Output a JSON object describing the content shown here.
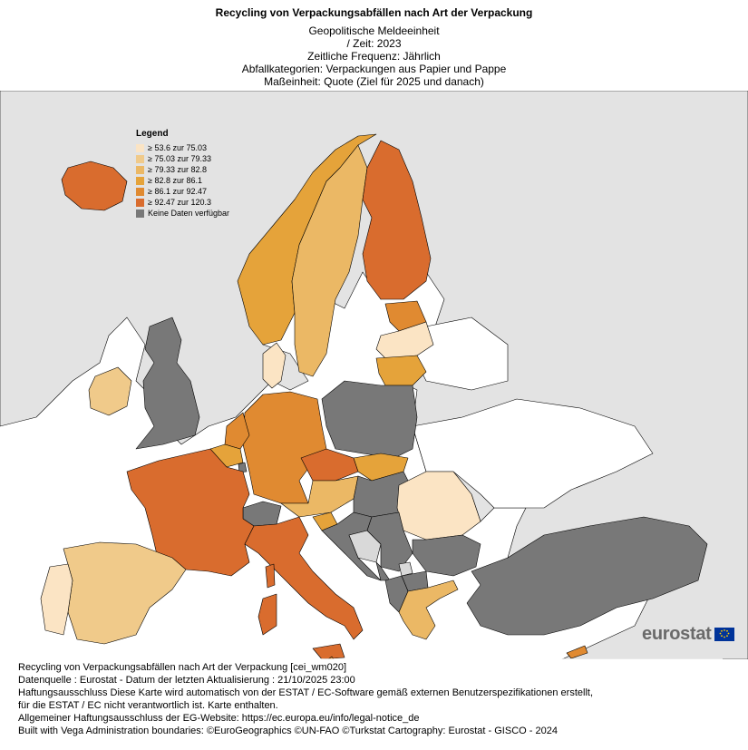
{
  "header": {
    "title": "Recycling von Verpackungsabfällen nach Art der Verpackung",
    "meta": [
      "Geopolitische Meldeeinheit",
      "/ Zeit:  2023",
      "Zeitliche Frequenz:  Jährlich",
      "Abfallkategorien:  Verpackungen aus Papier und Pappe",
      "Maßeinheit:  Quote (Ziel für 2025 und danach)"
    ]
  },
  "legend": {
    "title": "Legend",
    "items": [
      {
        "label": "≥ 53.6 zur 75.03",
        "color": "#fbe4c4"
      },
      {
        "label": "≥ 75.03 zur 79.33",
        "color": "#f0ca8a"
      },
      {
        "label": "≥ 79.33 zur 82.8",
        "color": "#ebb865"
      },
      {
        "label": "≥ 82.8 zur 86.1",
        "color": "#e5a33a"
      },
      {
        "label": "≥ 86.1 zur 92.47",
        "color": "#e08a31"
      },
      {
        "label": "≥ 92.47 zur 120.3",
        "color": "#d96c2e"
      },
      {
        "label": "Keine Daten verfügbar",
        "color": "#787878"
      }
    ]
  },
  "map_colors": {
    "sea": "#ffffff",
    "non_eu": "#e3e3e3",
    "no_data": "#787878",
    "other_white": "#ffffff",
    "border": "#000000"
  },
  "logo": {
    "text": "eurostat"
  },
  "footer": {
    "lines": [
      "Recycling von Verpackungsabfällen nach Art der Verpackung [cei_wm020]",
      "Datenquelle : Eurostat - Datum der letzten Aktualisierung : 21/10/2025 23:00",
      "Haftungsausschluss Diese Karte wird automatisch von der ESTAT / EC-Software gemäß externen Benutzerspezifikationen erstellt,",
      "für die ESTAT / EC nicht verantwortlich ist. Karte enthalten.",
      "Allgemeiner Haftungsausschluss der EG-Website: https://ec.europa.eu/info/legal-notice_de",
      "Built with Vega Administration boundaries: ©EuroGeographics ©UN-FAO ©Turkstat Cartography: Eurostat - GISCO - 2024"
    ]
  }
}
